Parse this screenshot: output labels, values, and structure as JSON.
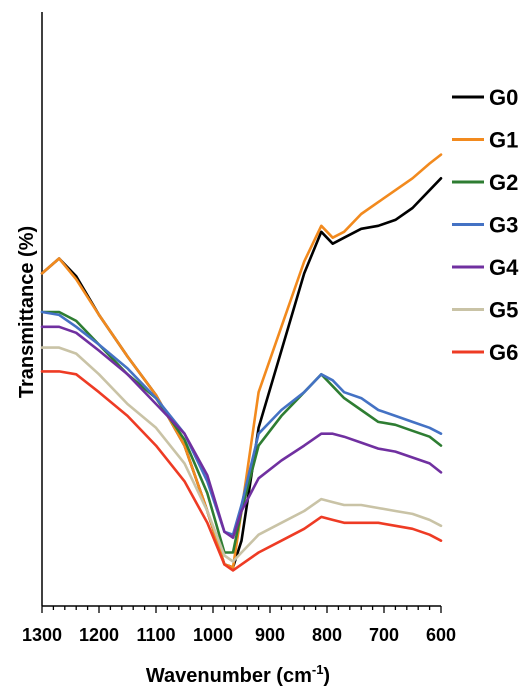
{
  "chart_data": {
    "type": "line",
    "title": "",
    "xlabel": "Wavenumber (cm",
    "xlabel_sup": "-1",
    "xlabel_end": ")",
    "ylabel": "Transmittance (%)",
    "xlim": [
      1300,
      600
    ],
    "x_reversed": true,
    "x_ticks": [
      1300,
      1200,
      1100,
      1000,
      900,
      800,
      700,
      600
    ],
    "y_ticks": false,
    "grid": false,
    "legend": "right",
    "x": [
      1300,
      1270,
      1240,
      1200,
      1150,
      1100,
      1050,
      1010,
      980,
      965,
      950,
      920,
      880,
      840,
      810,
      790,
      770,
      740,
      710,
      680,
      650,
      620,
      600
    ],
    "series": [
      {
        "name": "G0",
        "color": "#000000",
        "values": [
          0.56,
          0.585,
          0.555,
          0.49,
          0.42,
          0.355,
          0.27,
          0.16,
          0.07,
          0.065,
          0.11,
          0.3,
          0.43,
          0.56,
          0.63,
          0.61,
          0.62,
          0.635,
          0.64,
          0.65,
          0.67,
          0.7,
          0.72
        ]
      },
      {
        "name": "G1",
        "color": "#F28A1E",
        "values": [
          0.56,
          0.585,
          0.55,
          0.49,
          0.42,
          0.355,
          0.27,
          0.16,
          0.07,
          0.065,
          0.16,
          0.36,
          0.47,
          0.58,
          0.64,
          0.62,
          0.63,
          0.66,
          0.68,
          0.7,
          0.72,
          0.745,
          0.76
        ]
      },
      {
        "name": "G2",
        "color": "#2E7D32",
        "values": [
          0.495,
          0.495,
          0.48,
          0.44,
          0.39,
          0.35,
          0.28,
          0.19,
          0.09,
          0.09,
          0.16,
          0.27,
          0.32,
          0.36,
          0.39,
          0.37,
          0.35,
          0.33,
          0.31,
          0.305,
          0.295,
          0.285,
          0.27
        ]
      },
      {
        "name": "G3",
        "color": "#4472C4",
        "values": [
          0.495,
          0.49,
          0.47,
          0.44,
          0.4,
          0.35,
          0.29,
          0.21,
          0.125,
          0.12,
          0.17,
          0.29,
          0.33,
          0.36,
          0.39,
          0.38,
          0.36,
          0.35,
          0.33,
          0.32,
          0.31,
          0.3,
          0.29
        ]
      },
      {
        "name": "G4",
        "color": "#7030A0",
        "values": [
          0.47,
          0.47,
          0.46,
          0.43,
          0.39,
          0.34,
          0.29,
          0.22,
          0.125,
          0.115,
          0.16,
          0.215,
          0.245,
          0.27,
          0.29,
          0.29,
          0.285,
          0.275,
          0.265,
          0.26,
          0.25,
          0.24,
          0.225
        ]
      },
      {
        "name": "G5",
        "color": "#C9C3A6",
        "values": [
          0.435,
          0.435,
          0.425,
          0.39,
          0.34,
          0.3,
          0.24,
          0.16,
          0.085,
          0.075,
          0.09,
          0.12,
          0.14,
          0.16,
          0.18,
          0.175,
          0.17,
          0.17,
          0.165,
          0.16,
          0.155,
          0.145,
          0.135
        ]
      },
      {
        "name": "G6",
        "color": "#EE3B24",
        "values": [
          0.395,
          0.395,
          0.39,
          0.36,
          0.32,
          0.27,
          0.21,
          0.14,
          0.07,
          0.06,
          0.07,
          0.09,
          0.11,
          0.13,
          0.15,
          0.145,
          0.14,
          0.14,
          0.14,
          0.135,
          0.13,
          0.12,
          0.11
        ]
      }
    ]
  }
}
